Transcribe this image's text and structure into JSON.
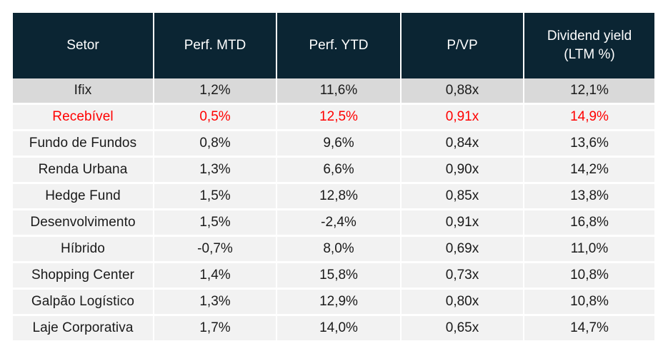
{
  "table": {
    "headers": [
      "Setor",
      "Perf. MTD",
      "Perf. YTD",
      "P/VP",
      "Dividend yield (LTM %)"
    ],
    "header_last_lines": [
      "Dividend yield",
      "(LTM %)"
    ],
    "rows": [
      {
        "setor": "Ifix",
        "mtd": "1,2%",
        "ytd": "11,6%",
        "pvp": "0,88x",
        "dy": "12,1%",
        "style": "index"
      },
      {
        "setor": "Recebível",
        "mtd": "0,5%",
        "ytd": "12,5%",
        "pvp": "0,91x",
        "dy": "14,9%",
        "style": "highlight"
      },
      {
        "setor": "Fundo de Fundos",
        "mtd": "0,8%",
        "ytd": "9,6%",
        "pvp": "0,84x",
        "dy": "13,6%",
        "style": "normal"
      },
      {
        "setor": "Renda Urbana",
        "mtd": "1,3%",
        "ytd": "6,6%",
        "pvp": "0,90x",
        "dy": "14,2%",
        "style": "normal"
      },
      {
        "setor": "Hedge Fund",
        "mtd": "1,5%",
        "ytd": "12,8%",
        "pvp": "0,85x",
        "dy": "13,8%",
        "style": "normal"
      },
      {
        "setor": "Desenvolvimento",
        "mtd": "1,5%",
        "ytd": "-2,4%",
        "pvp": "0,91x",
        "dy": "16,8%",
        "style": "normal"
      },
      {
        "setor": "Híbrido",
        "mtd": "-0,7%",
        "ytd": "8,0%",
        "pvp": "0,69x",
        "dy": "11,0%",
        "style": "normal"
      },
      {
        "setor": "Shopping Center",
        "mtd": "1,4%",
        "ytd": "15,8%",
        "pvp": "0,73x",
        "dy": "10,8%",
        "style": "normal"
      },
      {
        "setor": "Galpão Logístico",
        "mtd": "1,3%",
        "ytd": "12,9%",
        "pvp": "0,80x",
        "dy": "10,8%",
        "style": "normal"
      },
      {
        "setor": "Laje Corporativa",
        "mtd": "1,7%",
        "ytd": "14,0%",
        "pvp": "0,65x",
        "dy": "14,7%",
        "style": "normal"
      }
    ]
  },
  "colors": {
    "header_bg": "#0b2533",
    "index_row_bg": "#d9d9d9",
    "row_bg": "#f2f2f2",
    "highlight_text": "#ff0000"
  }
}
